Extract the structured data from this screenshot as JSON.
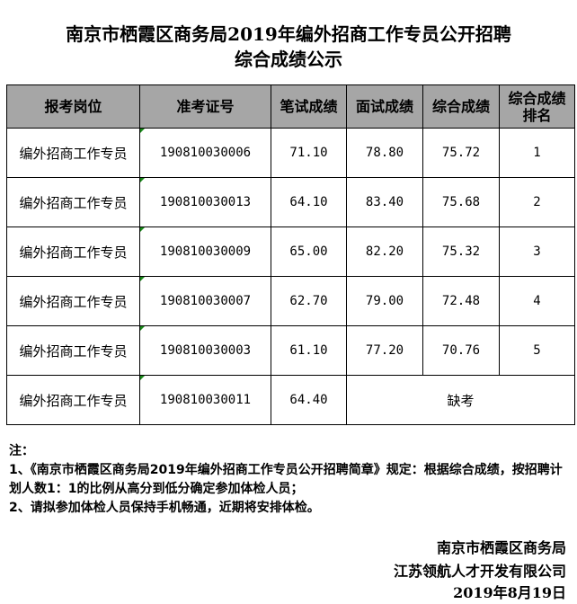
{
  "title_line1": "南京市栖霞区商务局2019年编外招商工作专员公开招聘",
  "title_line2": "综合成绩公示",
  "table": {
    "headers": [
      "报考岗位",
      "准考证号",
      "笔试成绩",
      "面试成绩",
      "综合成绩",
      "综合成绩排名"
    ],
    "rows": [
      {
        "position": "编外招商工作专员",
        "id": "190810030006",
        "written": "71.10",
        "interview": "78.80",
        "total": "75.72",
        "rank": "1"
      },
      {
        "position": "编外招商工作专员",
        "id": "190810030013",
        "written": "64.10",
        "interview": "83.40",
        "total": "75.68",
        "rank": "2"
      },
      {
        "position": "编外招商工作专员",
        "id": "190810030009",
        "written": "65.00",
        "interview": "82.20",
        "total": "75.32",
        "rank": "3"
      },
      {
        "position": "编外招商工作专员",
        "id": "190810030007",
        "written": "62.70",
        "interview": "79.00",
        "total": "72.48",
        "rank": "4"
      },
      {
        "position": "编外招商工作专员",
        "id": "190810030003",
        "written": "61.10",
        "interview": "77.20",
        "total": "70.76",
        "rank": "5"
      }
    ],
    "absent_row": {
      "position": "编外招商工作专员",
      "id": "190810030011",
      "written": "64.40",
      "note": "缺考"
    }
  },
  "notes": {
    "label": "注：",
    "item1": "1、《南京市栖霞区商务局2019年编外招商工作专员公开招聘简章》规定：根据综合成绩，按招聘计划人数1：1的比例从高分到低分确定参加体检人员；",
    "item2": "2、请拟参加体检人员保持手机畅通，近期将安排体检。"
  },
  "signature": {
    "org1": "南京市栖霞区商务局",
    "org2": "江苏领航人才开发有限公司",
    "date": "2019年8月19日"
  },
  "colors": {
    "header_bg": "#a6a6a6",
    "cell_marker": "#1a8a1a"
  }
}
